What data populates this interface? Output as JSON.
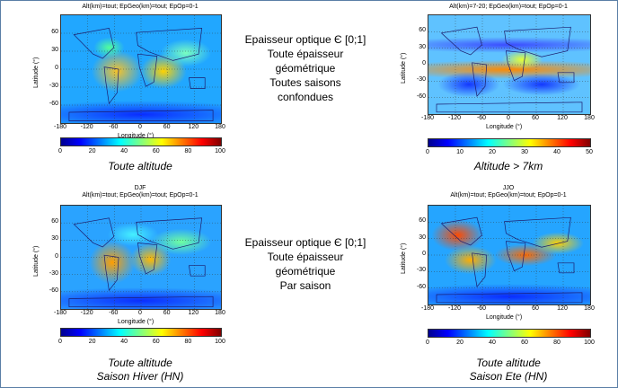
{
  "panels": [
    {
      "id": "tl",
      "title": "Alt(km)=tout; EpGeo(km)=tout; EpOp=0-1",
      "cbar_ticks": [
        "0",
        "20",
        "40",
        "60",
        "80",
        "100"
      ],
      "caption": [
        "Toute altitude"
      ]
    },
    {
      "id": "tr",
      "title": "Alt(km)=7-20; EpGeo(km)=tout; EpOp=0-1",
      "cbar_ticks": [
        "0",
        "10",
        "20",
        "30",
        "40",
        "50"
      ],
      "caption": [
        "Altitude > 7km"
      ]
    },
    {
      "id": "bl",
      "season": "DJF",
      "title": "Alt(km)=tout; EpGeo(km)=tout; EpOp=0-1",
      "cbar_ticks": [
        "0",
        "20",
        "40",
        "60",
        "80",
        "100"
      ],
      "caption": [
        "Toute altitude",
        "Saison Hiver (HN)"
      ]
    },
    {
      "id": "br",
      "season": "JJO",
      "title": "Alt(km)=tout; EpGeo(km)=tout; EpOp=0-1",
      "cbar_ticks": [
        "0",
        "20",
        "40",
        "60",
        "80",
        "100"
      ],
      "caption": [
        "Toute altitude",
        "Saison Ete (HN)"
      ]
    }
  ],
  "axes": {
    "xticks": [
      "-180",
      "-120",
      "-60",
      "0",
      "60",
      "120",
      "180"
    ],
    "yticks": [
      "60",
      "30",
      "0",
      "-30",
      "-60"
    ],
    "xlabel": "Longitude (°)",
    "ylabel": "Latitude (°)"
  },
  "desc_top": [
    "Epaisseur optique Є [0;1]",
    "Toute épaisseur",
    "géométrique",
    "Toutes saisons",
    "confondues"
  ],
  "desc_bottom": [
    "Epaisseur optique Є [0;1]",
    "Toute épaisseur",
    "géométrique",
    "Par saison"
  ]
}
